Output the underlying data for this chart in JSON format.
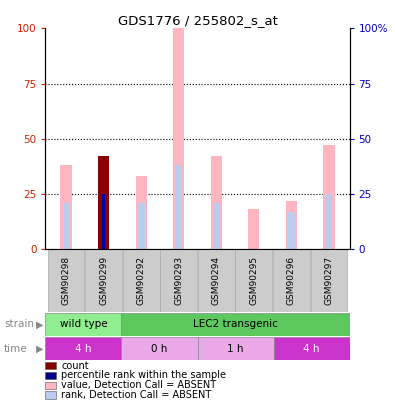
{
  "title": "GDS1776 / 255802_s_at",
  "samples": [
    "GSM90298",
    "GSM90299",
    "GSM90292",
    "GSM90293",
    "GSM90294",
    "GSM90295",
    "GSM90296",
    "GSM90297"
  ],
  "pink_bars": [
    38,
    42,
    33,
    100,
    42,
    18,
    22,
    47
  ],
  "light_blue_bars": [
    21,
    25,
    21,
    38,
    21,
    0,
    17,
    25
  ],
  "dark_red_bars": [
    0,
    42,
    0,
    0,
    0,
    0,
    0,
    0
  ],
  "blue_bars": [
    0,
    25,
    0,
    0,
    0,
    0,
    0,
    0
  ],
  "strain_groups": [
    {
      "label": "wild type",
      "start": 0,
      "end": 2,
      "color": "#90EE90"
    },
    {
      "label": "LEC2 transgenic",
      "start": 2,
      "end": 8,
      "color": "#5DC85D"
    }
  ],
  "time_groups": [
    {
      "label": "4 h",
      "start": 0,
      "end": 2,
      "color": "#CC33CC"
    },
    {
      "label": "0 h",
      "start": 2,
      "end": 4,
      "color": "#EAAAEA"
    },
    {
      "label": "1 h",
      "start": 4,
      "end": 6,
      "color": "#EAAAEA"
    },
    {
      "label": "4 h",
      "start": 6,
      "end": 8,
      "color": "#CC33CC"
    }
  ],
  "left_axis_color": "#CC2200",
  "right_axis_color": "#0000BB",
  "grid_ticks": [
    25,
    50,
    75
  ],
  "legend_items": [
    {
      "color": "#880000",
      "label": "count"
    },
    {
      "color": "#000088",
      "label": "percentile rank within the sample"
    },
    {
      "color": "#FFB6C1",
      "label": "value, Detection Call = ABSENT"
    },
    {
      "color": "#BBCCEE",
      "label": "rank, Detection Call = ABSENT"
    }
  ],
  "bar_pink": "#FFB6C1",
  "bar_lightblue": "#BBCCEE",
  "bar_darkred": "#880000",
  "bar_blue": "#0000AA"
}
